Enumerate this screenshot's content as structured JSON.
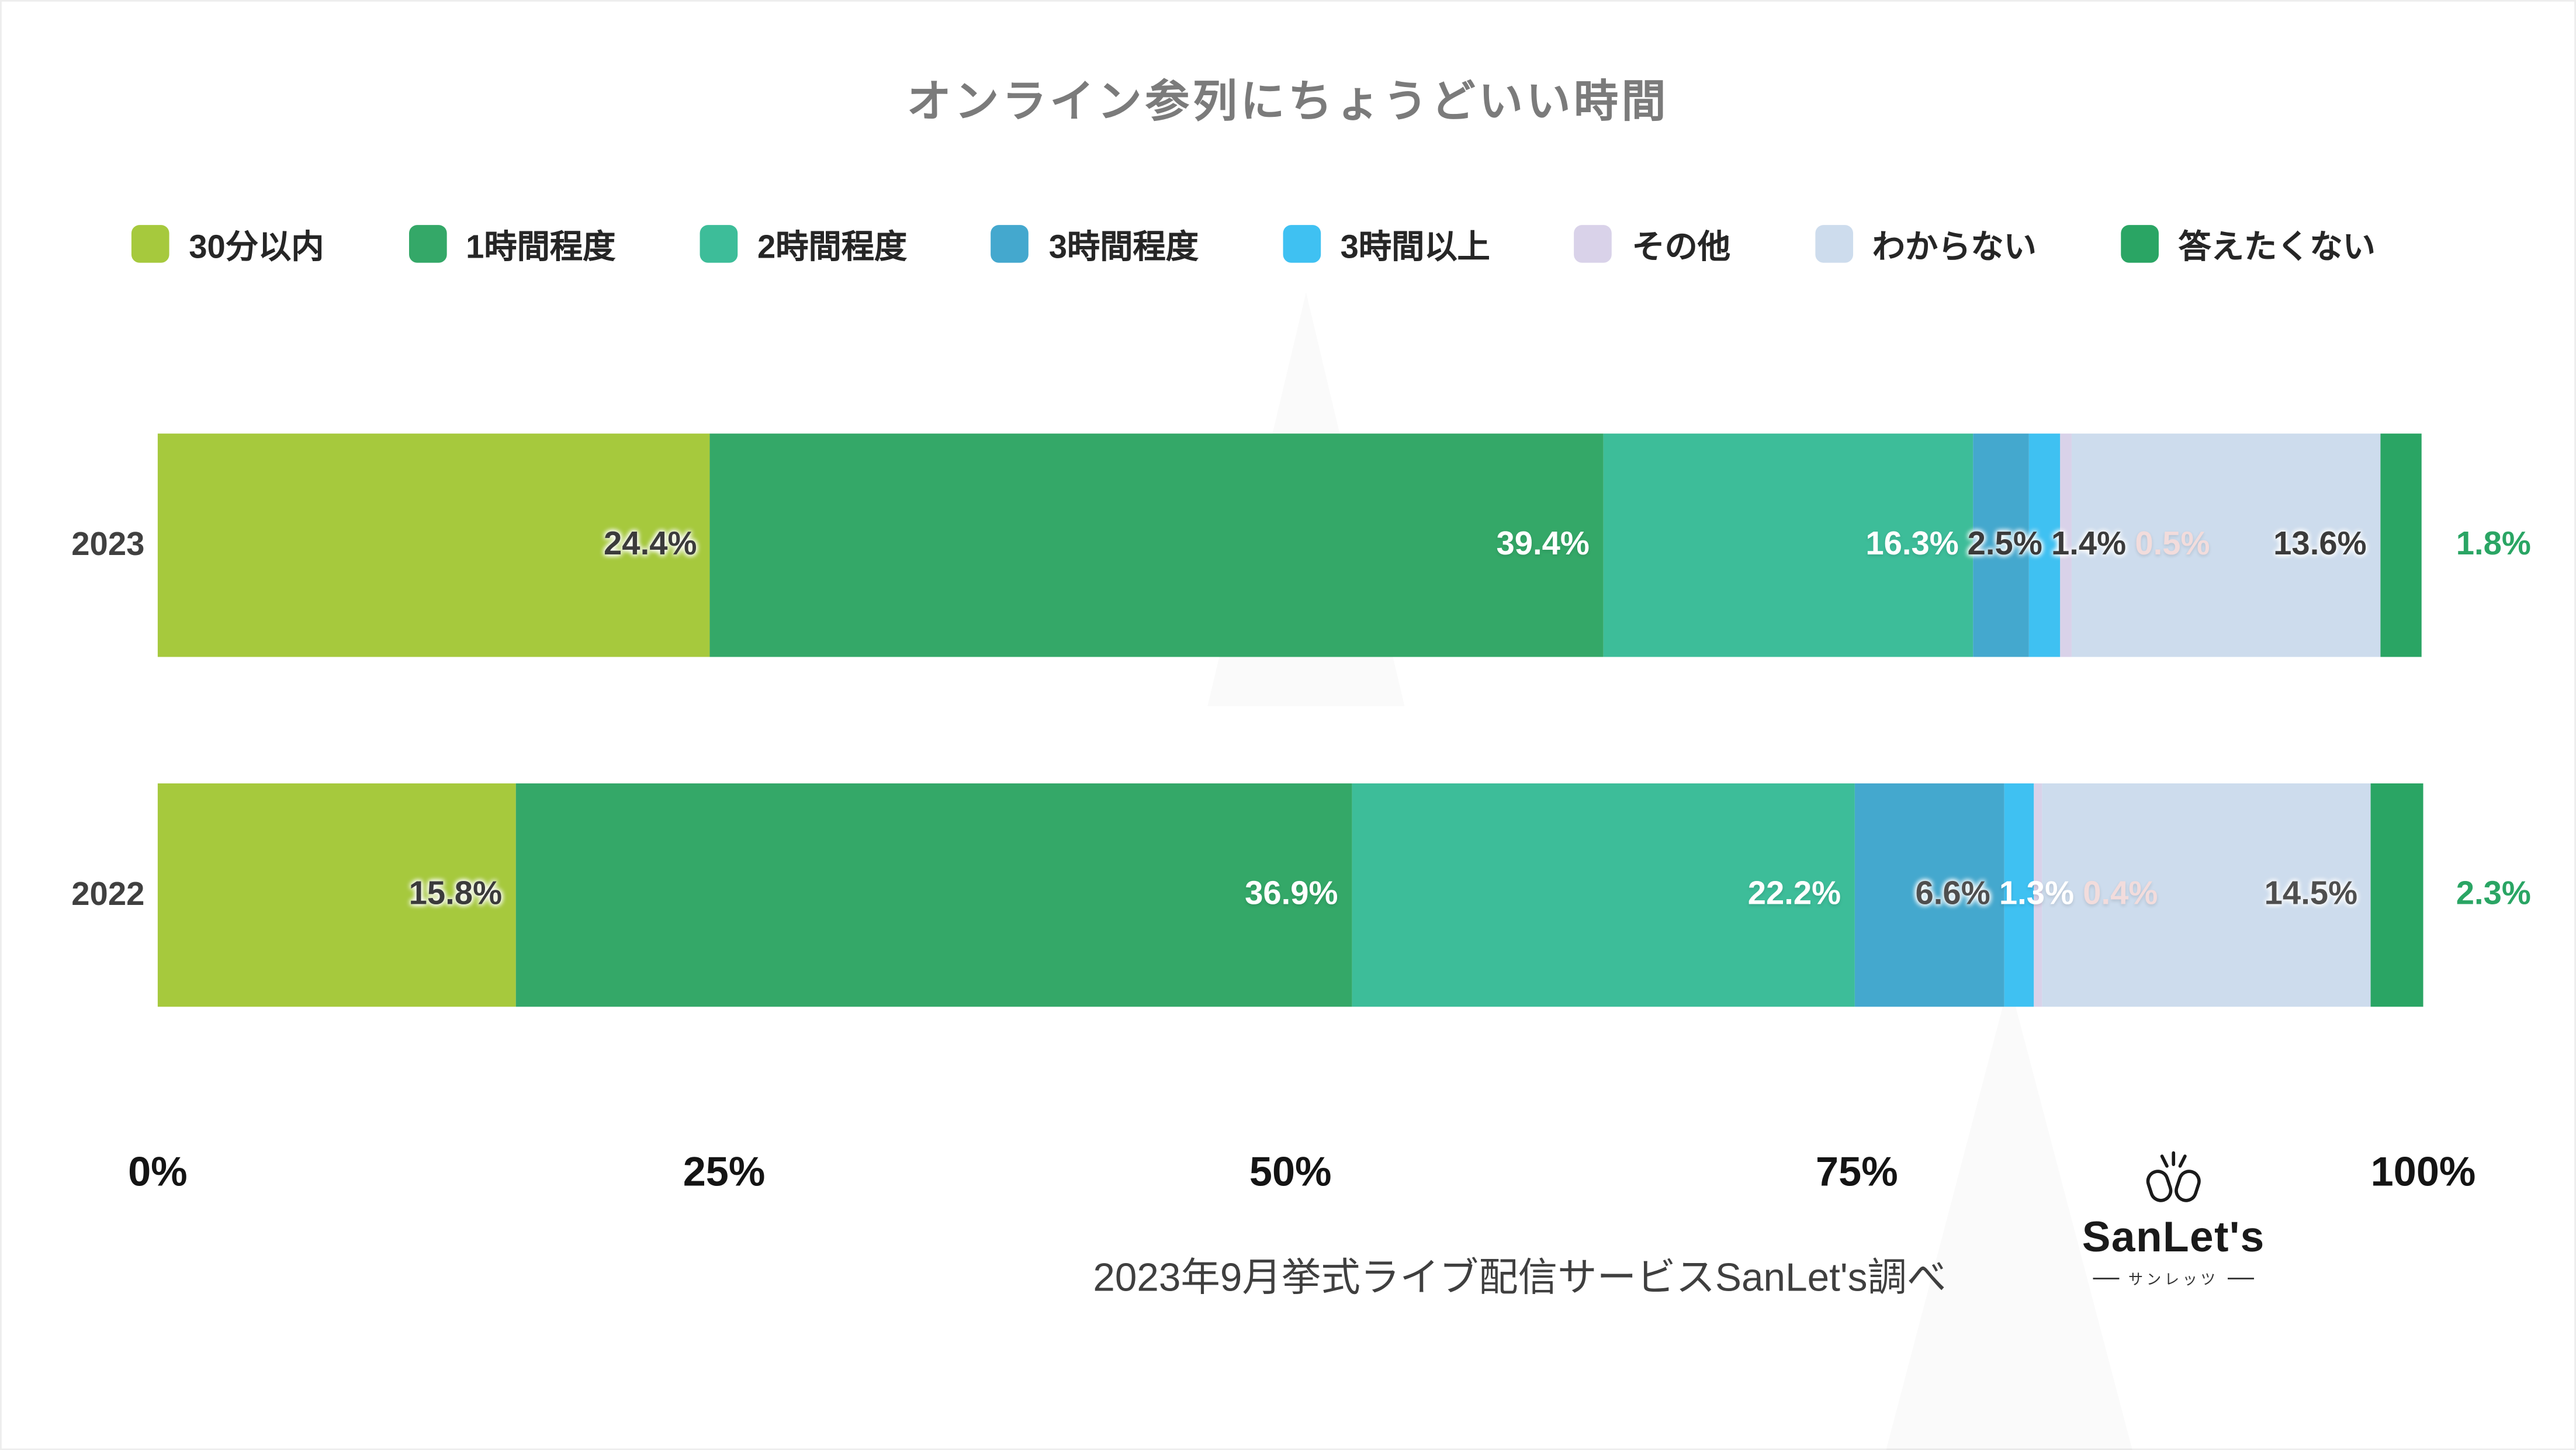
{
  "title": "オンライン参列にちょうどいい時間",
  "chart_data": {
    "type": "bar",
    "stacked": true,
    "orientation": "horizontal",
    "categories": [
      "2023",
      "2022"
    ],
    "series": [
      {
        "name": "30分以内",
        "color": "#a6c93d",
        "values": [
          24.4,
          15.8
        ],
        "label_colors": [
          "#3b3b3b",
          "#3b3b3b"
        ]
      },
      {
        "name": "1時間程度",
        "color": "#34a868",
        "values": [
          39.4,
          36.9
        ],
        "label_colors": [
          "#ffffff",
          "#ffffff"
        ]
      },
      {
        "name": "2時間程度",
        "color": "#3dbd99",
        "values": [
          16.3,
          22.2
        ],
        "label_colors": [
          "#ffffff",
          "#ffffff"
        ]
      },
      {
        "name": "3時間程度",
        "color": "#44a8ce",
        "values": [
          2.5,
          6.6
        ],
        "label_colors": [
          "#3b3b3b",
          "#4f4f4f"
        ]
      },
      {
        "name": "3時間以上",
        "color": "#3fc1f2",
        "values": [
          1.4,
          1.3
        ],
        "label_colors": [
          "#3b3b3b",
          "#ffffff"
        ]
      },
      {
        "name": "その他",
        "color": "#d9d2e9",
        "values": [
          0.5,
          0.4
        ],
        "label_colors": [
          "#f2dcdc",
          "#f2dcdc"
        ]
      },
      {
        "name": "わからない",
        "color": "#cddced",
        "values": [
          13.6,
          14.5
        ],
        "label_colors": [
          "#3b3b3b",
          "#4f4f4f"
        ]
      },
      {
        "name": "答えたくない",
        "color": "#2aa564",
        "values": [
          1.8,
          2.3
        ],
        "label_colors": [
          "#2aa564",
          "#2aa564"
        ],
        "label_outside": true
      }
    ],
    "x_ticks": [
      {
        "label": "0%",
        "value": 0
      },
      {
        "label": "25%",
        "value": 25
      },
      {
        "label": "50%",
        "value": 50
      },
      {
        "label": "75%",
        "value": 75
      },
      {
        "label": "100%",
        "value": 100
      }
    ],
    "xlim": [
      0,
      100
    ],
    "value_suffix": "%",
    "legend_position": "top"
  },
  "source": "2023年9月挙式ライブ配信サービスSanLet's調べ",
  "logo": {
    "name": "SanLet's",
    "subtitle": "サンレッツ"
  }
}
